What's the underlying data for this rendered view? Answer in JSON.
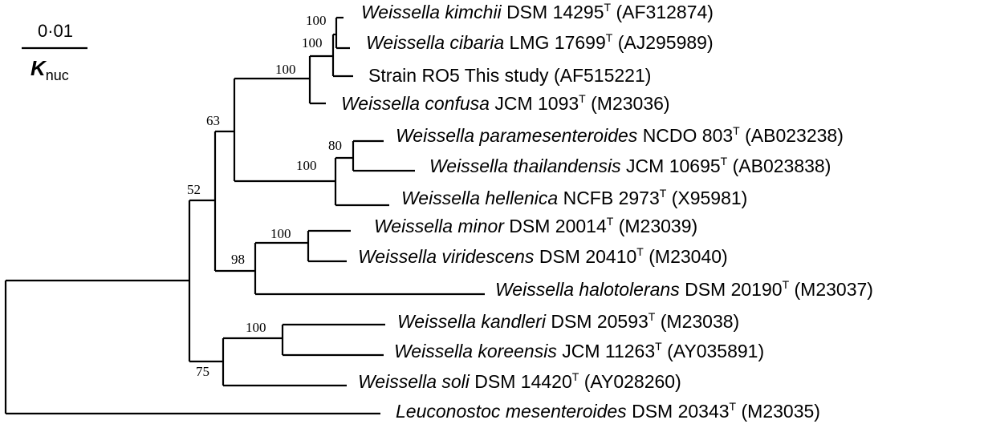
{
  "scale": {
    "value": "0·01",
    "symbol": "K",
    "subscript": "nuc"
  },
  "taxa": [
    {
      "id": "kimchii",
      "genus": "Weissella",
      "epithet": "kimchii",
      "strain": "DSM 14295",
      "type_strain": true,
      "accession": "(AF312874)"
    },
    {
      "id": "cibaria",
      "genus": "Weissella",
      "epithet": "cibaria",
      "strain": "LMG 17699",
      "type_strain": true,
      "accession": "(AJ295989)"
    },
    {
      "id": "ro5",
      "plain": "Strain RO5 This study",
      "accession": "(AF515221)"
    },
    {
      "id": "confusa",
      "genus": "Weissella",
      "epithet": "confusa",
      "strain": "JCM 1093",
      "type_strain": true,
      "accession": "(M23036)"
    },
    {
      "id": "paramesenteroides",
      "genus": "Weissella",
      "epithet": "paramesenteroides",
      "strain": "NCDO 803",
      "type_strain": true,
      "accession": "(AB023238)"
    },
    {
      "id": "thailandensis",
      "genus": "Weissella",
      "epithet": "thailandensis",
      "strain": "JCM 10695",
      "type_strain": true,
      "accession": "(AB023838)"
    },
    {
      "id": "hellenica",
      "genus": "Weissella",
      "epithet": "hellenica",
      "strain": "NCFB 2973",
      "type_strain": true,
      "accession": "(X95981)"
    },
    {
      "id": "minor",
      "genus": "Weissella",
      "epithet": "minor",
      "strain": "DSM 20014",
      "type_strain": true,
      "accession": "(M23039)"
    },
    {
      "id": "viridescens",
      "genus": "Weissella",
      "epithet": "viridescens",
      "strain": "DSM 20410",
      "type_strain": true,
      "accession": "(M23040)"
    },
    {
      "id": "halotolerans",
      "genus": "Weissella",
      "epithet": "halotolerans",
      "strain": "DSM 20190",
      "type_strain": true,
      "accession": "(M23037)"
    },
    {
      "id": "kandleri",
      "genus": "Weissella",
      "epithet": "kandleri",
      "strain": "DSM 20593",
      "type_strain": true,
      "accession": "(M23038)"
    },
    {
      "id": "koreensis",
      "genus": "Weissella",
      "epithet": "koreensis",
      "strain": "JCM 11263",
      "type_strain": true,
      "accession": "(AY035891)"
    },
    {
      "id": "soli",
      "genus": "Weissella",
      "epithet": "soli",
      "strain": "DSM 14420",
      "type_strain": true,
      "accession": "(AY028260)"
    },
    {
      "id": "leuconostoc",
      "genus": "Leuconostoc",
      "epithet": "mesenteroides",
      "strain": "DSM 20343",
      "type_strain": true,
      "accession": "(M23035)"
    }
  ],
  "type_strain_mark": "T",
  "bootstrap": {
    "kimchii_cibaria": "100",
    "kimchii_cibaria_ro5": "100",
    "confusa_clade": "100",
    "outer_upper": "63",
    "para_thai": "80",
    "hellenica_clade": "100",
    "ingroup_upper": "52",
    "minor_viridescens": "100",
    "halotolerans_clade": "98",
    "kandleri_koreensis": "100",
    "soli_clade": "75"
  }
}
